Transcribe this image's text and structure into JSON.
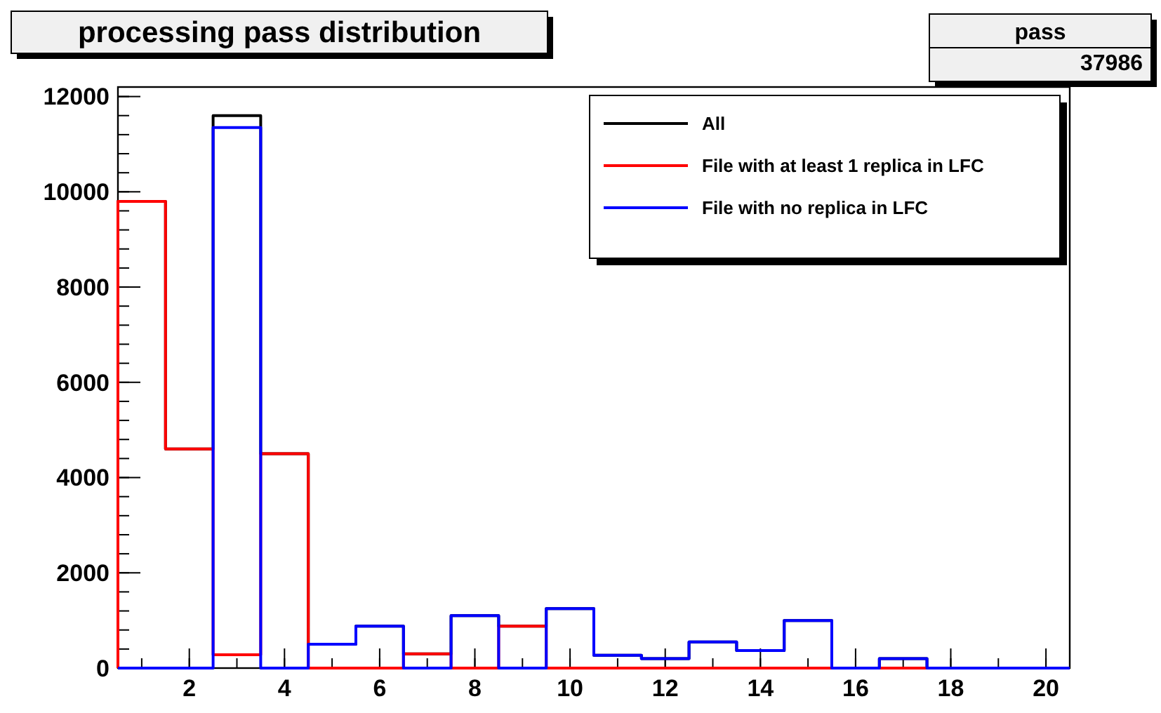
{
  "chart_data": {
    "type": "histogram",
    "title": "processing pass distribution",
    "bins": [
      0.5,
      1.5,
      2.5,
      3.5,
      4.5,
      5.5,
      6.5,
      7.5,
      8.5,
      9.5,
      10.5,
      11.5,
      12.5,
      13.5,
      14.5,
      15.5,
      16.5,
      17.5,
      18.5,
      19.5,
      20.5
    ],
    "series": [
      {
        "name": "All",
        "color": "#000000",
        "values": [
          9800,
          4600,
          11600,
          4500,
          500,
          880,
          300,
          1100,
          880,
          1250,
          270,
          200,
          550,
          370,
          1000,
          0,
          200,
          0,
          0,
          0
        ]
      },
      {
        "name": "File with at least 1 replica in LFC",
        "color": "#ff0000",
        "values": [
          9800,
          4600,
          280,
          4500,
          0,
          0,
          300,
          0,
          880,
          0,
          0,
          0,
          0,
          0,
          0,
          0,
          0,
          0,
          0,
          0
        ]
      },
      {
        "name": "File with no replica in LFC",
        "color": "#0000ff",
        "values": [
          0,
          0,
          11350,
          0,
          500,
          880,
          0,
          1100,
          0,
          1250,
          270,
          200,
          550,
          370,
          1000,
          0,
          200,
          0,
          0,
          0
        ]
      }
    ],
    "xlim": [
      0.5,
      20.5
    ],
    "xticks": [
      2,
      4,
      6,
      8,
      10,
      12,
      14,
      16,
      18,
      20
    ],
    "ylim": [
      0,
      12200
    ],
    "yticks": [
      0,
      2000,
      4000,
      6000,
      8000,
      10000,
      12000
    ],
    "legend": "top right",
    "grid": false,
    "annotations": [
      "pass",
      "37986"
    ]
  }
}
